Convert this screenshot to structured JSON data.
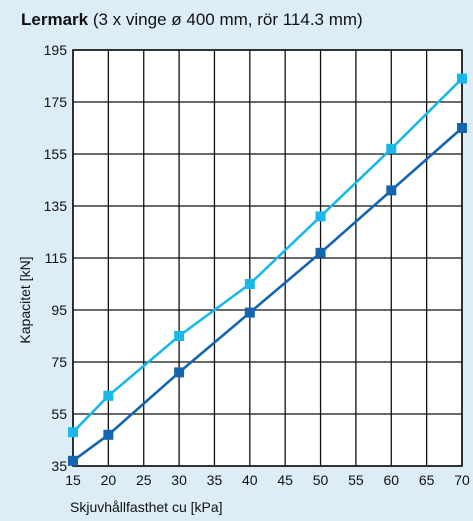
{
  "chart_data": {
    "type": "line",
    "title_bold": "Lermark",
    "title_rest": " (3 x vinge ø 400 mm, rör 114.3 mm)",
    "xlabel": "Skjuvhållfasthet cu [kPa]",
    "ylabel": "Kapacitet [kN]",
    "xlim": [
      15,
      70
    ],
    "ylim": [
      35,
      195
    ],
    "x_ticks": [
      15,
      20,
      25,
      30,
      35,
      40,
      45,
      50,
      55,
      60,
      65,
      70
    ],
    "y_ticks": [
      35,
      55,
      75,
      95,
      115,
      135,
      155,
      175,
      195
    ],
    "grid": true,
    "x": [
      15,
      20,
      30,
      40,
      50,
      60,
      70
    ],
    "series": [
      {
        "values": [
          48,
          62,
          85,
          105,
          131,
          157,
          184
        ],
        "color": "#1ab7ea"
      },
      {
        "values": [
          37,
          47,
          71,
          94,
          117,
          141,
          165
        ],
        "color": "#1565b0"
      }
    ]
  }
}
